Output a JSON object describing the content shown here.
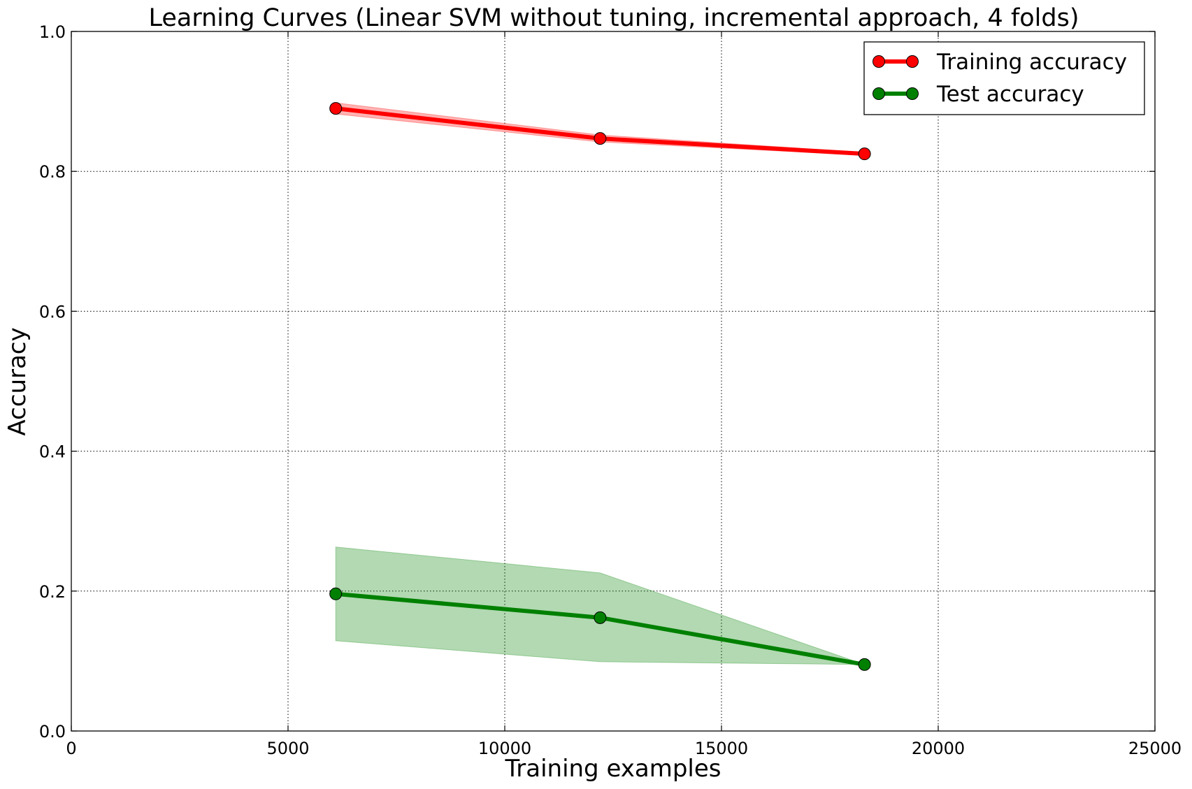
{
  "chart_data": {
    "type": "line",
    "title": "Learning Curves (Linear SVM without tuning, incremental approach, 4 folds)",
    "xlabel": "Training examples",
    "ylabel": "Accuracy",
    "xlim": [
      0,
      25000
    ],
    "ylim": [
      0.0,
      1.0
    ],
    "xticks": [
      0,
      5000,
      10000,
      15000,
      20000,
      25000
    ],
    "xtick_labels": [
      "0",
      "5000",
      "10000",
      "15000",
      "20000",
      "25000"
    ],
    "yticks": [
      0.0,
      0.2,
      0.4,
      0.6,
      0.8,
      1.0
    ],
    "ytick_labels": [
      "0.0",
      "0.2",
      "0.4",
      "0.6",
      "0.8",
      "1.0"
    ],
    "grid": true,
    "legend_position": "top-right",
    "x": [
      6100,
      12200,
      18300
    ],
    "series": [
      {
        "name": "Training accuracy",
        "color": "#ff0000",
        "band_color": "#ff0000",
        "values": [
          0.89,
          0.847,
          0.825
        ],
        "upper": [
          0.898,
          0.852,
          0.827
        ],
        "lower": [
          0.882,
          0.842,
          0.823
        ]
      },
      {
        "name": "Test accuracy",
        "color": "#008000",
        "band_color": "#008000",
        "values": [
          0.196,
          0.162,
          0.095
        ],
        "upper": [
          0.263,
          0.226,
          0.095
        ],
        "lower": [
          0.129,
          0.099,
          0.095
        ]
      }
    ]
  }
}
